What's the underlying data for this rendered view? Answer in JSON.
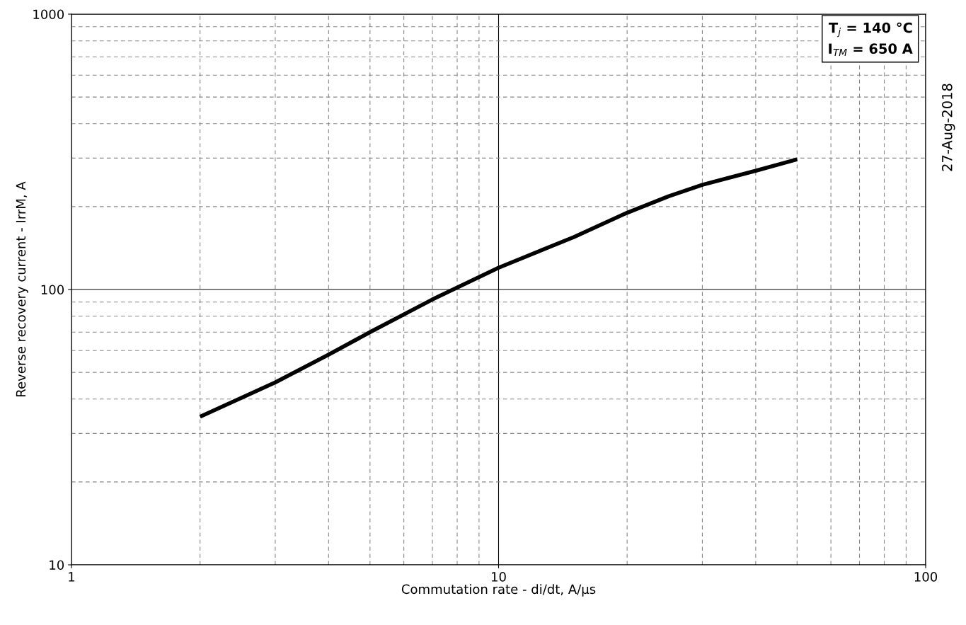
{
  "chart_data": {
    "type": "line",
    "xlabel": "Commutation rate - di/dt, A/µs",
    "ylabel": "Reverse recovery current - IrrM, A",
    "x": [
      2,
      3,
      4,
      5,
      7,
      10,
      15,
      20,
      25,
      30,
      40,
      50
    ],
    "series": [
      {
        "color": "#000000",
        "values": [
          34.5,
          46,
          58,
          70,
          92,
          120,
          155,
          190,
          218,
          240,
          270,
          297
        ]
      }
    ],
    "log": "xy",
    "xlim": [
      1,
      100
    ],
    "ylim": [
      10,
      1000
    ],
    "xticks": [
      1,
      10,
      100
    ],
    "yticks": [
      10,
      100,
      1000
    ],
    "grid": true,
    "marker": "none",
    "line_style": "solid",
    "annotations": [
      "T$_{j}$ = 140 °C\nI$_{TM}$ = 650 A",
      "27-Aug-2018"
    ]
  }
}
